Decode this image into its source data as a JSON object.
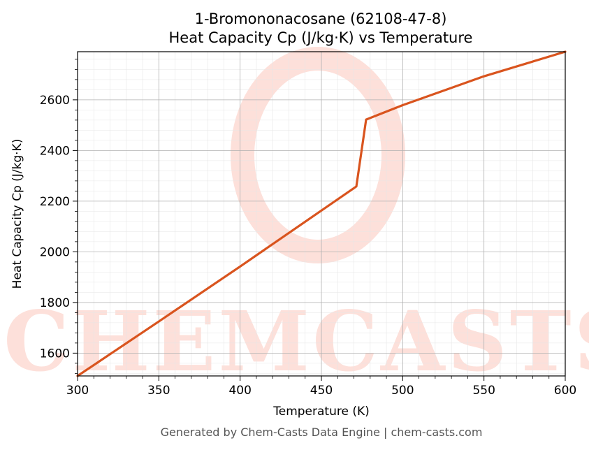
{
  "title_line1": "1-Bromononacosane (62108-47-8)",
  "title_line2": "Heat Capacity Cp (J/kg·K) vs Temperature",
  "footer": "Generated by Chem-Casts Data Engine | chem-casts.com",
  "watermark_text": "CHEMCASTS",
  "colors": {
    "line": "#d9541e",
    "watermark": "#fde0da",
    "grid_major": "#b0b0b0",
    "grid_minor": "#e6e6e6"
  },
  "chart_data": {
    "type": "line",
    "xlabel": "Temperature (K)",
    "ylabel": "Heat Capacity Cp (J/kg·K)",
    "xlim": [
      300,
      600
    ],
    "ylim": [
      1510,
      2790
    ],
    "xticks": [
      300,
      350,
      400,
      450,
      500,
      550,
      600
    ],
    "yticks": [
      1600,
      1800,
      2000,
      2200,
      2400,
      2600
    ],
    "grid": true,
    "series": [
      {
        "x": [
          300,
          350,
          400,
          450,
          471.5,
          477.5,
          500,
          550,
          600
        ],
        "y": [
          1510,
          1725,
          1942,
          2163,
          2258,
          2522,
          2579,
          2693,
          2790
        ]
      }
    ]
  }
}
